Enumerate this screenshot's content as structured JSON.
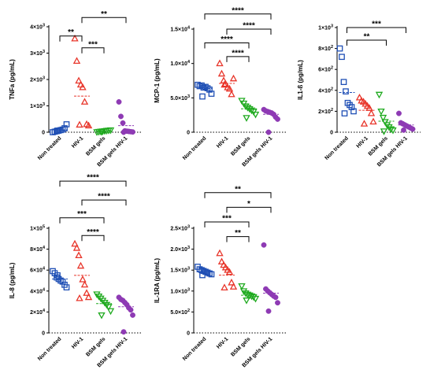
{
  "colors": {
    "Non treated": "#1f4fb5",
    "HIV-1": "#e8352a",
    "BSM gels": "#1faa1f",
    "BSM gels HIV-1": "#8e3ab4"
  },
  "markers": {
    "Non treated": "square",
    "HIV-1": "triangle-up",
    "BSM gels": "triangle-down",
    "BSM gels HIV-1": "circle"
  },
  "chart_data": [
    {
      "type": "scatter",
      "ylabel_parts": [
        "TNFa (pg/mL)"
      ],
      "categories": [
        "Non treated",
        "HIV-1",
        "BSM gels",
        "BSM gels HIV-1"
      ],
      "ylim": [
        0,
        4000
      ],
      "yticks": [
        {
          "value": 0,
          "mant": "0",
          "exp": ""
        },
        {
          "value": 1000,
          "mant": "1×10",
          "exp": "3"
        },
        {
          "value": 2000,
          "mant": "2×10",
          "exp": "3"
        },
        {
          "value": 3000,
          "mant": "3×10",
          "exp": "3"
        },
        {
          "value": 4000,
          "mant": "4×10",
          "exp": "3"
        }
      ],
      "series": [
        {
          "category": "Non treated",
          "values": [
            0,
            20,
            40,
            60,
            80,
            100,
            150,
            300,
            60
          ]
        },
        {
          "category": "HIV-1",
          "values": [
            3550,
            2700,
            1950,
            1800,
            1700,
            1150,
            300,
            250,
            280
          ]
        },
        {
          "category": "BSM gels",
          "values": [
            10,
            20,
            30,
            40,
            50,
            60,
            70,
            80,
            20
          ]
        },
        {
          "category": "BSM gels HIV-1",
          "values": [
            1150,
            600,
            350,
            50,
            40,
            30,
            20,
            10,
            0
          ]
        }
      ],
      "means": [
        90,
        1370,
        45,
        250
      ],
      "brackets": [
        {
          "from": 0,
          "to": 1,
          "level": 3650,
          "label": "**"
        },
        {
          "from": 1,
          "to": 2,
          "level": 3200,
          "label": "***"
        },
        {
          "from": 1,
          "to": 3,
          "level": 4350,
          "label": "**"
        }
      ]
    },
    {
      "type": "scatter",
      "ylabel_parts": [
        "MCP-1 (pg/mL)"
      ],
      "categories": [
        "Non treated",
        "HIV-1",
        "BSM gels",
        "BSM gels HIV-1"
      ],
      "ylim": [
        0,
        15000
      ],
      "yticks": [
        {
          "value": 0,
          "mant": "0",
          "exp": ""
        },
        {
          "value": 5000,
          "mant": "5.0×10",
          "exp": "3"
        },
        {
          "value": 10000,
          "mant": "1.0×10",
          "exp": "4"
        },
        {
          "value": 15000,
          "mant": "1.5×10",
          "exp": "4"
        }
      ],
      "series": [
        {
          "category": "Non treated",
          "values": [
            6900,
            6700,
            6800,
            6500,
            6600,
            6400,
            6200,
            5600,
            5200
          ]
        },
        {
          "category": "HIV-1",
          "values": [
            10000,
            8500,
            7500,
            7000,
            6500,
            6300,
            5500,
            7800,
            6900
          ]
        },
        {
          "category": "BSM gels",
          "values": [
            4600,
            4200,
            3800,
            3600,
            3400,
            3200,
            3000,
            2600,
            2100
          ]
        },
        {
          "category": "BSM gels HIV-1",
          "values": [
            3300,
            3100,
            3000,
            2900,
            2800,
            2600,
            2200,
            1900,
            0
          ]
        }
      ],
      "means": [
        6350,
        7100,
        3400,
        2600
      ],
      "brackets": [
        {
          "from": 1,
          "to": 2,
          "level": 11000,
          "label": "****"
        },
        {
          "from": 0,
          "to": 2,
          "level": 13000,
          "label": "****"
        },
        {
          "from": 1,
          "to": 3,
          "level": 15000,
          "label": "****"
        },
        {
          "from": 0,
          "to": 3,
          "level": 17200,
          "label": "****"
        }
      ]
    },
    {
      "type": "scatter",
      "ylabel_parts": [
        "IL1-ß (pg/mL)"
      ],
      "categories": [
        "Non treated",
        "HIV-1",
        "BSM gels",
        "BSM gels HIV-1"
      ],
      "ylim": [
        0,
        1000
      ],
      "yticks": [
        {
          "value": 0,
          "mant": "0",
          "exp": ""
        },
        {
          "value": 200,
          "mant": "2×10",
          "exp": "2"
        },
        {
          "value": 400,
          "mant": "4×10",
          "exp": "2"
        },
        {
          "value": 600,
          "mant": "6×10",
          "exp": "2"
        },
        {
          "value": 800,
          "mant": "8×10",
          "exp": "2"
        },
        {
          "value": 1000,
          "mant": "1×10",
          "exp": "3"
        }
      ],
      "series": [
        {
          "category": "Non treated",
          "values": [
            800,
            720,
            480,
            390,
            280,
            260,
            240,
            200,
            180
          ]
        },
        {
          "category": "HIV-1",
          "values": [
            330,
            300,
            290,
            270,
            250,
            230,
            180,
            100,
            80
          ]
        },
        {
          "category": "BSM gels",
          "values": [
            360,
            200,
            140,
            100,
            70,
            50,
            30,
            20,
            10
          ]
        },
        {
          "category": "BSM gels HIV-1",
          "values": [
            180,
            90,
            80,
            70,
            60,
            50,
            40,
            30,
            20
          ]
        }
      ],
      "means": [
        380,
        210,
        105,
        70
      ],
      "brackets": [
        {
          "from": 0,
          "to": 2,
          "level": 880,
          "label": "**"
        },
        {
          "from": 0,
          "to": 3,
          "level": 1000,
          "label": "***"
        }
      ]
    },
    {
      "type": "scatter",
      "ylabel_parts": [
        "IL-8 (pg/mL)"
      ],
      "categories": [
        "Non treated",
        "HIV-1",
        "BSM gels",
        "BSM gels HIV-1"
      ],
      "ylim": [
        0,
        100000
      ],
      "yticks": [
        {
          "value": 0,
          "mant": "0",
          "exp": ""
        },
        {
          "value": 20000,
          "mant": "2×10",
          "exp": "4"
        },
        {
          "value": 40000,
          "mant": "4×10",
          "exp": "4"
        },
        {
          "value": 60000,
          "mant": "6×10",
          "exp": "4"
        },
        {
          "value": 80000,
          "mant": "8×10",
          "exp": "4"
        },
        {
          "value": 100000,
          "mant": "1×10",
          "exp": "5"
        }
      ],
      "series": [
        {
          "category": "Non treated",
          "values": [
            59000,
            57000,
            53000,
            51500,
            50000,
            49000,
            46000,
            43500,
            55000
          ]
        },
        {
          "category": "HIV-1",
          "values": [
            85000,
            81000,
            74000,
            64000,
            51000,
            46000,
            38000,
            34000,
            33000
          ]
        },
        {
          "category": "BSM gels",
          "values": [
            37000,
            35000,
            33000,
            31000,
            29000,
            27000,
            25000,
            21000,
            17000
          ]
        },
        {
          "category": "BSM gels HIV-1",
          "values": [
            34000,
            32000,
            31000,
            29000,
            27000,
            24000,
            22000,
            17000,
            1000
          ]
        }
      ],
      "means": [
        51500,
        55000,
        28000,
        25000
      ],
      "brackets": [
        {
          "from": 1,
          "to": 2,
          "level": 93000,
          "label": "****"
        },
        {
          "from": 0,
          "to": 2,
          "level": 110000,
          "label": "***"
        },
        {
          "from": 1,
          "to": 3,
          "level": 127000,
          "label": "****"
        },
        {
          "from": 0,
          "to": 3,
          "level": 145000,
          "label": "****"
        }
      ]
    },
    {
      "type": "scatter",
      "ylabel_parts": [
        "IL-1RA (pg/mL)"
      ],
      "categories": [
        "Non treated",
        "HIV-1",
        "BSM gels",
        "BSM gels HIV-1"
      ],
      "ylim": [
        0,
        2500
      ],
      "yticks": [
        {
          "value": 0,
          "mant": "0",
          "exp": ""
        },
        {
          "value": 500,
          "mant": "5.0×10",
          "exp": "2"
        },
        {
          "value": 1000,
          "mant": "1.0×10",
          "exp": "3"
        },
        {
          "value": 1500,
          "mant": "1.5×10",
          "exp": "3"
        },
        {
          "value": 2000,
          "mant": "2.0×10",
          "exp": "3"
        },
        {
          "value": 2500,
          "mant": "2.5×10",
          "exp": "3"
        }
      ],
      "series": [
        {
          "category": "Non treated",
          "values": [
            1580,
            1520,
            1500,
            1480,
            1460,
            1440,
            1420,
            1400,
            1380
          ]
        },
        {
          "category": "HIV-1",
          "values": [
            1900,
            1700,
            1620,
            1560,
            1500,
            1450,
            1200,
            1100,
            1080
          ]
        },
        {
          "category": "BSM gels",
          "values": [
            1120,
            1000,
            950,
            920,
            900,
            880,
            860,
            820,
            780
          ]
        },
        {
          "category": "BSM gels HIV-1",
          "values": [
            2100,
            1050,
            1000,
            960,
            920,
            880,
            850,
            720,
            520
          ]
        }
      ],
      "means": [
        1470,
        1380,
        900,
        950
      ],
      "brackets": [
        {
          "from": 1,
          "to": 2,
          "level": 2300,
          "label": "**"
        },
        {
          "from": 0,
          "to": 2,
          "level": 2650,
          "label": "***"
        },
        {
          "from": 1,
          "to": 3,
          "level": 3000,
          "label": "*"
        },
        {
          "from": 0,
          "to": 3,
          "level": 3350,
          "label": "**"
        }
      ]
    }
  ]
}
